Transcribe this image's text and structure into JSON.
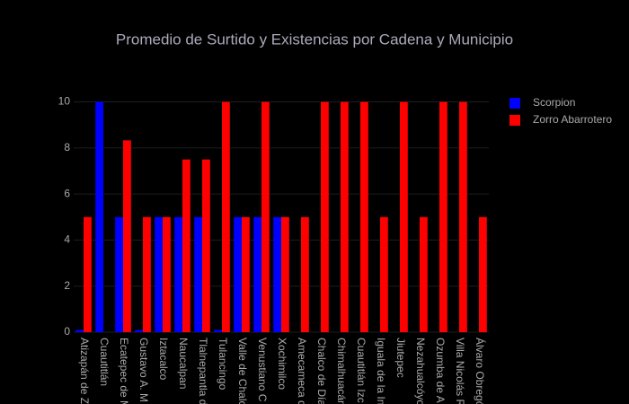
{
  "chart_data": {
    "type": "bar",
    "title": "Promedio de Surtido y Existencias por Cadena y Municipio",
    "categories": [
      "Atizapán de Z",
      "Cuautitlán",
      "Ecatepec de M",
      "Gustavo A. M",
      "Iztacalco",
      "Naucalpan",
      "Tlalnepantla d",
      "Tulancingo",
      "Valle de Chalc",
      "Venustiano C",
      "Xochimilco",
      "Amecameca d",
      "Chalco de Día",
      "Chimalhuacán",
      "Cuautitlán Izc",
      "Iguala de la In",
      "Jiutepec",
      "Nezahualcóyo",
      "Ozumba de A",
      "Villa Nicolás R",
      "Álvaro Obregó"
    ],
    "series": [
      {
        "name": "Scorpion",
        "color": "#0000ff",
        "values": [
          0.1,
          10,
          5,
          0.1,
          5,
          5,
          5,
          0.1,
          5,
          5,
          5,
          null,
          null,
          null,
          null,
          null,
          null,
          null,
          null,
          null,
          null
        ]
      },
      {
        "name": "Zorro Abarrotero",
        "color": "#ff0000",
        "values": [
          5,
          null,
          8.33,
          5,
          5,
          7.5,
          7.5,
          10,
          5,
          10,
          5,
          5,
          10,
          10,
          10,
          5,
          10,
          5,
          10,
          10,
          5
        ]
      }
    ],
    "ylim": [
      0,
      10.526
    ],
    "yticks": [
      0,
      2,
      4,
      6,
      8,
      10
    ],
    "grid": true,
    "legend": "top-right"
  }
}
